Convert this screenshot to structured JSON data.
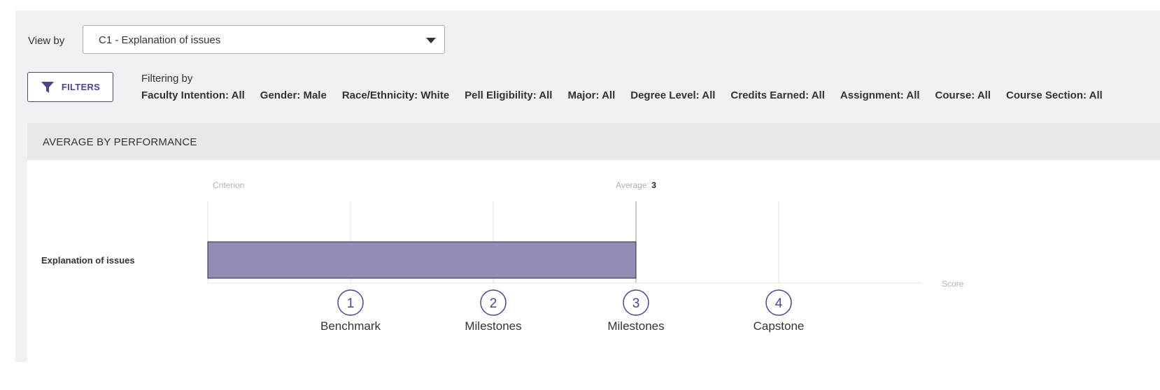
{
  "view_by": {
    "label": "View by",
    "selected": "C1 - Explanation of issues"
  },
  "filters": {
    "button_label": "FILTERS",
    "title": "Filtering by",
    "items": [
      "Faculty Intention: All",
      "Gender: Male",
      "Race/Ethnicity: White",
      "Pell Eligibility: All",
      "Major: All",
      "Degree Level: All",
      "Credits Earned: All",
      "Assignment: All",
      "Course: All",
      "Course Section: All"
    ]
  },
  "section": {
    "title": "AVERAGE BY PERFORMANCE"
  },
  "chart_data": {
    "type": "bar",
    "orientation": "horizontal",
    "column_header": "Criterion",
    "average_label": "Average:",
    "average_value": 3,
    "categories": [
      "Explanation of issues"
    ],
    "values": [
      3
    ],
    "xlabel": "Score",
    "xlim": [
      0,
      5
    ],
    "ticks": [
      {
        "value": 1,
        "label": "Benchmark"
      },
      {
        "value": 2,
        "label": "Milestones"
      },
      {
        "value": 3,
        "label": "Milestones"
      },
      {
        "value": 4,
        "label": "Capstone"
      }
    ],
    "grid": true,
    "colors": {
      "bar": "#938cb5",
      "bar_border": "#2b2650",
      "tick_circle": "#4a4592",
      "grid": "#e3e3e6"
    }
  }
}
